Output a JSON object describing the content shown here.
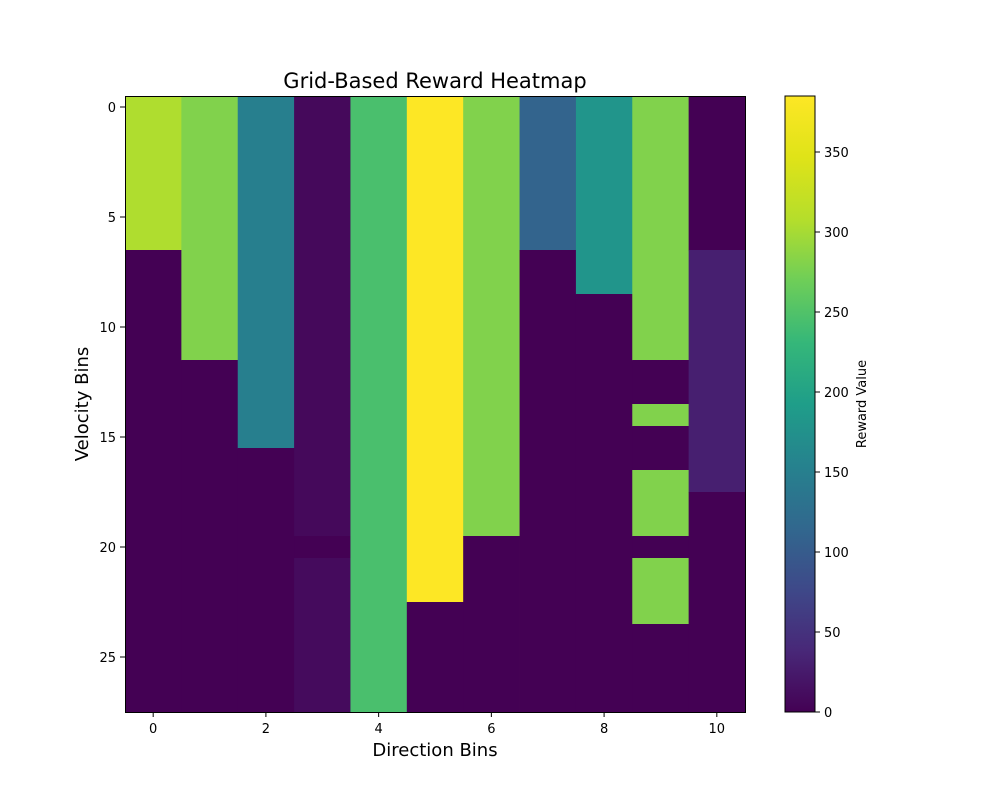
{
  "chart_data": {
    "type": "heatmap",
    "title": "Grid-Based Reward Heatmap",
    "xlabel": "Direction Bins",
    "ylabel": "Velocity Bins",
    "colorbar_label": "Reward Value",
    "colormap": "viridis",
    "vmin": 0,
    "vmax": 385,
    "x_ticks": [
      0,
      2,
      4,
      6,
      8,
      10
    ],
    "y_ticks": [
      0,
      5,
      10,
      15,
      20,
      25
    ],
    "colorbar_ticks": [
      0,
      50,
      100,
      150,
      200,
      250,
      300,
      350
    ],
    "n_rows": 28,
    "n_cols": 11,
    "columns": [
      {
        "col": 0,
        "segments": [
          {
            "from": 0,
            "to": 6,
            "value": 305
          },
          {
            "from": 7,
            "to": 27,
            "value": 0
          }
        ]
      },
      {
        "col": 1,
        "segments": [
          {
            "from": 0,
            "to": 11,
            "value": 280
          },
          {
            "from": 12,
            "to": 27,
            "value": 0
          }
        ]
      },
      {
        "col": 2,
        "segments": [
          {
            "from": 0,
            "to": 15,
            "value": 150
          },
          {
            "from": 16,
            "to": 27,
            "value": 0
          }
        ]
      },
      {
        "col": 3,
        "segments": [
          {
            "from": 0,
            "to": 19,
            "value": 8
          },
          {
            "from": 20,
            "to": 20,
            "value": 0
          },
          {
            "from": 21,
            "to": 27,
            "value": 10
          }
        ]
      },
      {
        "col": 4,
        "segments": [
          {
            "from": 0,
            "to": 27,
            "value": 245
          }
        ]
      },
      {
        "col": 5,
        "segments": [
          {
            "from": 0,
            "to": 22,
            "value": 385
          },
          {
            "from": 23,
            "to": 27,
            "value": 0
          }
        ]
      },
      {
        "col": 6,
        "segments": [
          {
            "from": 0,
            "to": 19,
            "value": 280
          },
          {
            "from": 20,
            "to": 27,
            "value": 0
          }
        ]
      },
      {
        "col": 7,
        "segments": [
          {
            "from": 0,
            "to": 6,
            "value": 110
          },
          {
            "from": 7,
            "to": 27,
            "value": 0
          }
        ]
      },
      {
        "col": 8,
        "segments": [
          {
            "from": 0,
            "to": 8,
            "value": 180
          },
          {
            "from": 9,
            "to": 27,
            "value": 0
          }
        ]
      },
      {
        "col": 9,
        "segments": [
          {
            "from": 0,
            "to": 11,
            "value": 280
          },
          {
            "from": 12,
            "to": 13,
            "value": 0
          },
          {
            "from": 14,
            "to": 14,
            "value": 280
          },
          {
            "from": 15,
            "to": 16,
            "value": 0
          },
          {
            "from": 17,
            "to": 19,
            "value": 280
          },
          {
            "from": 20,
            "to": 20,
            "value": 0
          },
          {
            "from": 21,
            "to": 23,
            "value": 280
          },
          {
            "from": 24,
            "to": 27,
            "value": 0
          }
        ]
      },
      {
        "col": 10,
        "segments": [
          {
            "from": 0,
            "to": 6,
            "value": 0
          },
          {
            "from": 7,
            "to": 17,
            "value": 30
          },
          {
            "from": 18,
            "to": 27,
            "value": 0
          }
        ]
      }
    ]
  }
}
